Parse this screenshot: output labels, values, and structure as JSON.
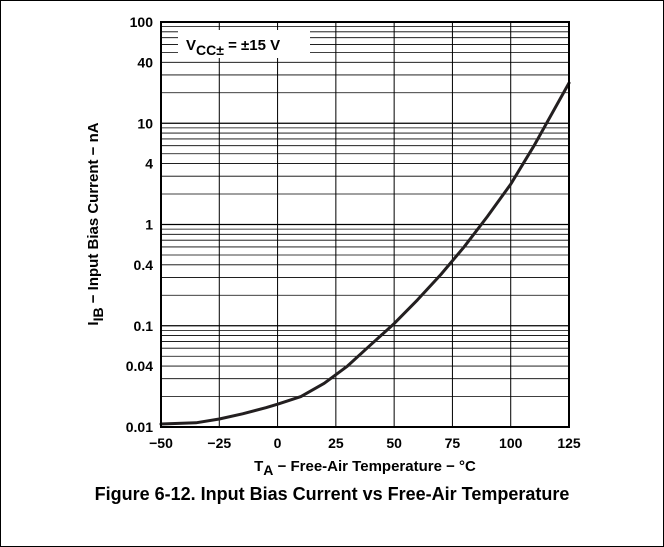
{
  "figure": {
    "caption": "Figure 6-12. Input Bias Current vs Free-Air Temperature"
  },
  "chart_data": {
    "type": "line",
    "title": "",
    "xlabel": {
      "main": "T",
      "sub": "A",
      "rest": " − Free-Air Temperature − °C"
    },
    "ylabel": {
      "main": "I",
      "sub": "IB",
      "rest": " − Input Bias Current − nA"
    },
    "annotation": {
      "main": "V",
      "sub": "CC±",
      "rest": " = ±15 V"
    },
    "xlim": [
      -50,
      125
    ],
    "ylim": [
      0.01,
      100
    ],
    "yscale": "log",
    "grid": true,
    "x_ticks": [
      {
        "value": -50,
        "label": "−50"
      },
      {
        "value": -25,
        "label": "−25"
      },
      {
        "value": 0,
        "label": "0"
      },
      {
        "value": 25,
        "label": "25"
      },
      {
        "value": 50,
        "label": "50"
      },
      {
        "value": 75,
        "label": "75"
      },
      {
        "value": 100,
        "label": "100"
      },
      {
        "value": 125,
        "label": "125"
      }
    ],
    "y_ticks": [
      {
        "value": 100,
        "label": "100"
      },
      {
        "value": 40,
        "label": "40"
      },
      {
        "value": 10,
        "label": "10"
      },
      {
        "value": 4,
        "label": "4"
      },
      {
        "value": 1,
        "label": "1"
      },
      {
        "value": 0.4,
        "label": "0.4"
      },
      {
        "value": 0.1,
        "label": "0.1"
      },
      {
        "value": 0.04,
        "label": "0.04"
      },
      {
        "value": 0.01,
        "label": "0.01"
      }
    ],
    "series": [
      {
        "x": [
          -50,
          -35,
          -25,
          -15,
          -5,
          0,
          10,
          20,
          30,
          40,
          50,
          60,
          70,
          80,
          90,
          100,
          110,
          125
        ],
        "y": [
          0.0107,
          0.011,
          0.012,
          0.0135,
          0.0155,
          0.0168,
          0.02,
          0.027,
          0.04,
          0.065,
          0.105,
          0.18,
          0.32,
          0.6,
          1.2,
          2.5,
          6,
          25
        ]
      }
    ],
    "colors": {
      "line": "#231f20",
      "grid": "#000000",
      "background": "#ffffff"
    }
  }
}
